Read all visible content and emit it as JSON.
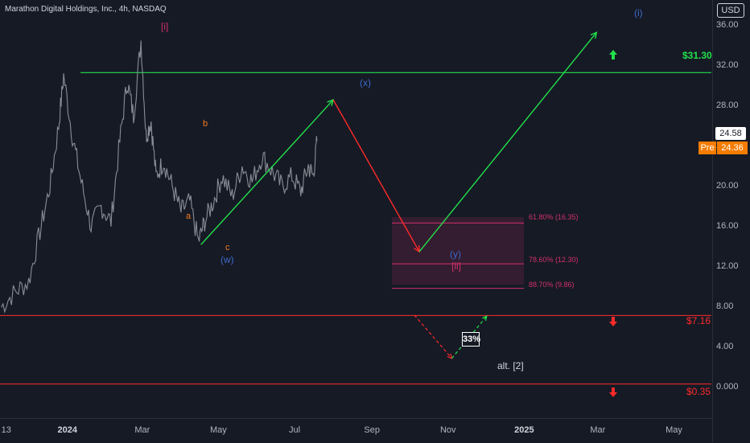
{
  "header": {
    "title": "Marathon Digital Holdings, Inc., 4h, NASDAQ",
    "currency": "USD"
  },
  "price_axis": {
    "ticks": [
      "36.00",
      "32.00",
      "28.00",
      "24.00",
      "20.00",
      "16.00",
      "12.00",
      "8.00",
      "4.00",
      "0.000"
    ],
    "last_price": "24.58",
    "premarket_label": "Pre",
    "premarket_price": "24.36"
  },
  "time_axis": {
    "labels": [
      {
        "text": "13",
        "bold": false
      },
      {
        "text": "2024",
        "bold": true
      },
      {
        "text": "Mar",
        "bold": false
      },
      {
        "text": "May",
        "bold": false
      },
      {
        "text": "Jul",
        "bold": false
      },
      {
        "text": "Sep",
        "bold": false
      },
      {
        "text": "Nov",
        "bold": false
      },
      {
        "text": "2025",
        "bold": true
      },
      {
        "text": "Mar",
        "bold": false
      },
      {
        "text": "May",
        "bold": false
      }
    ]
  },
  "levels": {
    "resistance": {
      "value": 31.3,
      "label": "$31.30",
      "color": "#22e04b"
    },
    "support_1": {
      "value": 7.16,
      "label": "$7.16",
      "color": "#ff2a2a"
    },
    "support_2": {
      "value": 0.35,
      "label": "$0.35",
      "color": "#ff2a2a"
    }
  },
  "target_zone": {
    "color": "#d1306b",
    "fibs": [
      {
        "value": 16.35,
        "label": "61.80% (16.35)"
      },
      {
        "value": 12.3,
        "label": "78.60% (12.30)"
      },
      {
        "value": 9.86,
        "label": "88.70% (9.86)"
      }
    ]
  },
  "wave_labels": {
    "wave_i_red": "[i]",
    "wave_a": "a",
    "wave_b": "b",
    "wave_c": "c",
    "wave_w": "(w)",
    "wave_x": "(x)",
    "wave_y": "(y)",
    "wave_ii": "[ii]",
    "wave_i_blue": "(i)",
    "alt": "alt. [2]",
    "probability": "33%"
  },
  "colors": {
    "background": "#161a25",
    "price_line": "#8a8d96",
    "projection_up": "#22e04b",
    "projection_down": "#ff2a2a",
    "wave_blue": "#3d6bcc",
    "wave_orange": "#f47c20",
    "wave_magenta": "#d1306b",
    "premarket": "#f57c00"
  },
  "chart_data": {
    "type": "line",
    "title": "Marathon Digital Holdings, Inc., 4h, NASDAQ",
    "ylim": [
      0,
      37
    ],
    "xlim": [
      "2023-11-08",
      "2025-05-31"
    ],
    "y_scale": "linear",
    "grid": false,
    "series": [
      {
        "name": "",
        "x": [
          "2023-11-09",
          "2023-11-20",
          "2023-12-01",
          "2023-12-10",
          "2023-12-18",
          "2023-12-25",
          "2023-12-29",
          "2024-01-05",
          "2024-01-12",
          "2024-01-20",
          "2024-01-28",
          "2024-02-05",
          "2024-02-12",
          "2024-02-18",
          "2024-02-23",
          "2024-02-29",
          "2024-03-04",
          "2024-03-08",
          "2024-03-12",
          "2024-03-18",
          "2024-03-25",
          "2024-04-01",
          "2024-04-08",
          "2024-04-15",
          "2024-04-20",
          "2024-04-27",
          "2024-05-04",
          "2024-05-12",
          "2024-05-20",
          "2024-05-28",
          "2024-06-05",
          "2024-06-13",
          "2024-06-21",
          "2024-06-29",
          "2024-07-06",
          "2024-07-12",
          "2024-07-16",
          "2024-07-19"
        ],
        "y": [
          8.0,
          9.5,
          10.5,
          15.5,
          20.0,
          26.0,
          31.0,
          25.0,
          20.5,
          16.0,
          18.0,
          16.5,
          24.5,
          30.5,
          27.0,
          34.5,
          25.0,
          26.5,
          21.0,
          22.5,
          20.0,
          17.5,
          18.5,
          14.5,
          16.5,
          18.5,
          21.0,
          19.0,
          22.0,
          20.5,
          23.0,
          21.5,
          20.0,
          21.0,
          19.5,
          22.0,
          21.0,
          24.5
        ]
      },
      {
        "name": "",
        "x": [
          "2024-04-17",
          "2024-08-01",
          "2024-10-09",
          "2025-02-28"
        ],
        "y": [
          14.2,
          28.6,
          13.5,
          35.3
        ]
      },
      {
        "name": "",
        "x": [
          "2024-10-05",
          "2024-11-04",
          "2024-12-02"
        ],
        "y": [
          7.2,
          2.9,
          7.1
        ]
      }
    ],
    "annotations": [
      {
        "text": "$31.30",
        "y": 31.3
      },
      {
        "text": "$7.16",
        "y": 7.16
      },
      {
        "text": "$0.35",
        "y": 0.35
      },
      {
        "text": "61.80% (16.35)",
        "y": 16.35
      },
      {
        "text": "78.60% (12.30)",
        "y": 12.3
      },
      {
        "text": "88.70% (9.86)",
        "y": 9.86
      }
    ]
  }
}
